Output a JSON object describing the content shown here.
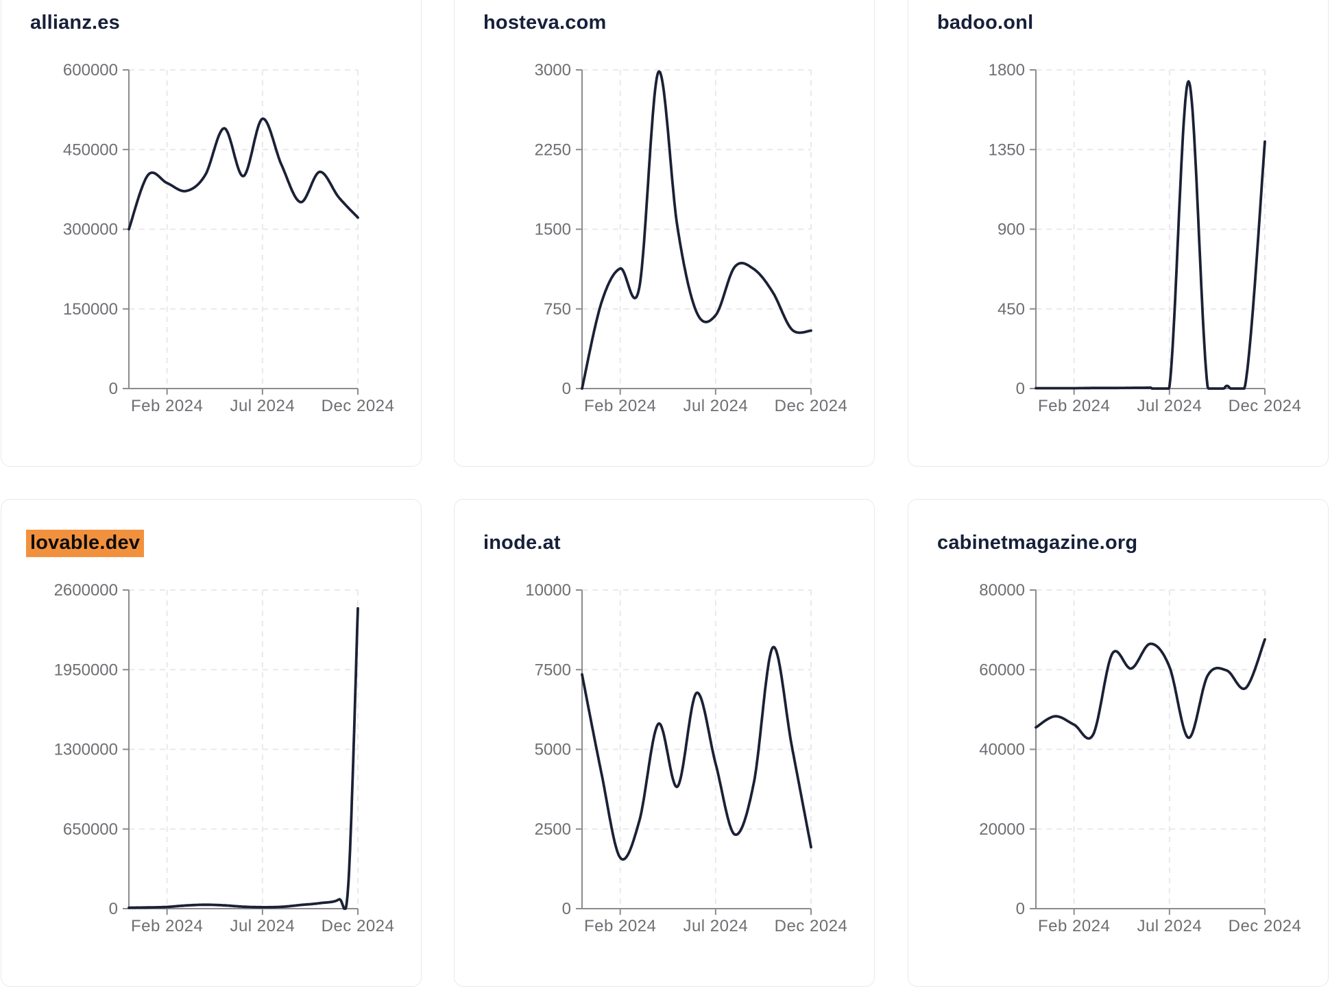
{
  "theme": {
    "page_background": "#ffffff",
    "card_background": "#ffffff",
    "card_border_color": "#e4e9f0",
    "line_color": "#1b2135",
    "title_color": "#17203a",
    "tick_label_color": "#6e6e73",
    "axis_color": "#8b8b8f",
    "grid_color": "#e9e9ed",
    "highlight_color": "#f2913d",
    "highlight_text_color": "#0c0c0c"
  },
  "chart_data": [
    {
      "type": "line",
      "title": "allianz.es",
      "highlighted": false,
      "ylim": [
        0,
        600000
      ],
      "y_ticks": [
        "600000",
        "450000",
        "300000",
        "150000",
        "0"
      ],
      "x_ticks": [
        {
          "t": 2,
          "label": "Feb 2024"
        },
        {
          "t": 7,
          "label": "Jul 2024"
        },
        {
          "t": 12,
          "label": "Dec 2024"
        }
      ],
      "grid": true,
      "points": {
        "t": [
          0,
          1,
          2,
          3,
          4,
          5,
          6,
          7,
          8,
          9,
          10,
          11,
          12
        ],
        "values": [
          300000,
          402000,
          387000,
          372000,
          402000,
          490000,
          400000,
          508000,
          421000,
          351000,
          408000,
          360000,
          322000
        ]
      }
    },
    {
      "type": "line",
      "title": "hosteva.com",
      "highlighted": false,
      "ylim": [
        0,
        3000
      ],
      "y_ticks": [
        "3000",
        "2250",
        "1500",
        "750",
        "0"
      ],
      "x_ticks": [
        {
          "t": 2,
          "label": "Feb 2024"
        },
        {
          "t": 7,
          "label": "Jul 2024"
        },
        {
          "t": 12,
          "label": "Dec 2024"
        }
      ],
      "grid": true,
      "points": {
        "t": [
          0,
          1,
          2,
          3,
          4,
          5,
          6,
          7,
          8,
          9,
          10,
          11,
          12
        ],
        "values": [
          0,
          800,
          1130,
          950,
          2980,
          1520,
          720,
          690,
          1145,
          1125,
          905,
          555,
          545
        ]
      }
    },
    {
      "type": "line",
      "title": "badoo.onl",
      "highlighted": false,
      "ylim": [
        0,
        1800
      ],
      "y_ticks": [
        "1800",
        "1350",
        "900",
        "450",
        "0"
      ],
      "x_ticks": [
        {
          "t": 2,
          "label": "Feb 2024"
        },
        {
          "t": 7,
          "label": "Jul 2024"
        },
        {
          "t": 12,
          "label": "Dec 2024"
        }
      ],
      "grid": true,
      "points": {
        "t": [
          0,
          1,
          2,
          3,
          4,
          5,
          6,
          7,
          8,
          9,
          10,
          11,
          12
        ],
        "values": [
          2,
          2,
          2,
          3,
          3,
          4,
          5,
          10,
          1735,
          10,
          15,
          40,
          1395
        ]
      }
    },
    {
      "type": "line",
      "title": "lovable.dev",
      "highlighted": true,
      "ylim": [
        0,
        2600000
      ],
      "y_ticks": [
        "2600000",
        "1950000",
        "1300000",
        "650000",
        "0"
      ],
      "x_ticks": [
        {
          "t": 2,
          "label": "Feb 2024"
        },
        {
          "t": 7,
          "label": "Jul 2024"
        },
        {
          "t": 12,
          "label": "Dec 2024"
        }
      ],
      "grid": true,
      "points": {
        "t": [
          0,
          1,
          2,
          3,
          4,
          5,
          6,
          7,
          8,
          9,
          10,
          11,
          11.5,
          12
        ],
        "values": [
          8000,
          10000,
          14000,
          26000,
          32000,
          27000,
          16000,
          12000,
          15000,
          30000,
          45000,
          75000,
          200000,
          2450000
        ]
      }
    },
    {
      "type": "line",
      "title": "inode.at",
      "highlighted": false,
      "ylim": [
        0,
        10000
      ],
      "y_ticks": [
        "10000",
        "7500",
        "5000",
        "2500",
        "0"
      ],
      "x_ticks": [
        {
          "t": 2,
          "label": "Feb 2024"
        },
        {
          "t": 7,
          "label": "Jul 2024"
        },
        {
          "t": 12,
          "label": "Dec 2024"
        }
      ],
      "grid": true,
      "points": {
        "t": [
          0,
          1,
          2,
          3,
          4,
          5,
          6,
          7,
          8,
          9,
          10,
          11,
          12
        ],
        "values": [
          7350,
          4300,
          1600,
          2750,
          5800,
          3830,
          6770,
          4550,
          2330,
          3940,
          8200,
          5080,
          1930
        ]
      }
    },
    {
      "type": "line",
      "title": "cabinetmagazine.org",
      "highlighted": false,
      "ylim": [
        0,
        80000
      ],
      "y_ticks": [
        "80000",
        "60000",
        "40000",
        "20000",
        "0"
      ],
      "x_ticks": [
        {
          "t": 2,
          "label": "Feb 2024"
        },
        {
          "t": 7,
          "label": "Jul 2024"
        },
        {
          "t": 12,
          "label": "Dec 2024"
        }
      ],
      "grid": true,
      "points": {
        "t": [
          0,
          1,
          2,
          3,
          4,
          5,
          6,
          7,
          8,
          9,
          10,
          11,
          12
        ],
        "values": [
          45500,
          48300,
          46200,
          43700,
          64000,
          60300,
          66500,
          60700,
          42900,
          58500,
          59800,
          55400,
          67600
        ]
      }
    }
  ],
  "layout_hints": {
    "columns": 3,
    "rows": 2,
    "x_axis_span_months": 12,
    "legend": "none"
  }
}
